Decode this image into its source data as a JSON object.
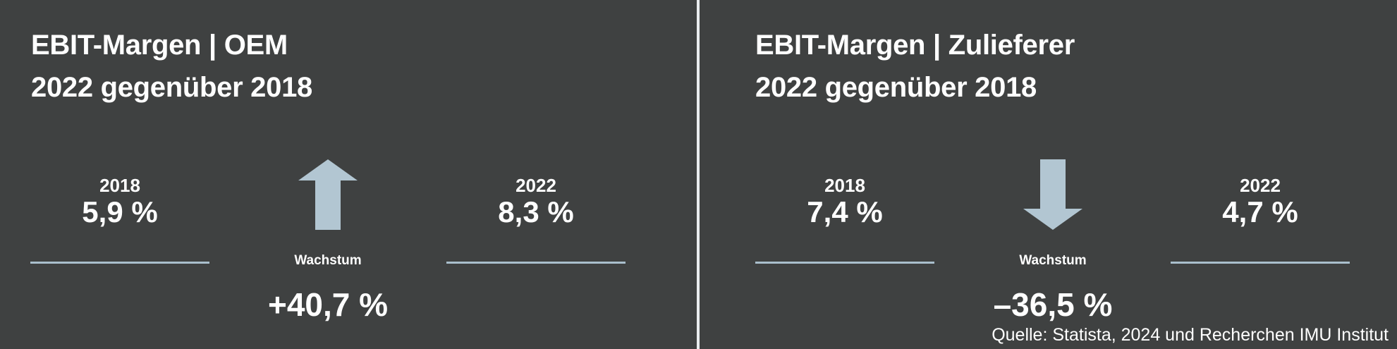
{
  "colors": {
    "background": "#3f4141",
    "text": "#ffffff",
    "accent": "#b2c6d2",
    "rule": "#a9bfcc",
    "divider": "#e9ecee"
  },
  "chart_data": [
    {
      "type": "table",
      "title": [
        "EBIT-Margen | OEM",
        "2022 gegenüber 2018"
      ],
      "values": [
        {
          "year": "2018",
          "label": "5,9 %",
          "value": 5.9
        },
        {
          "year": "2022",
          "label": "8,3 %",
          "value": 8.3
        }
      ],
      "growth": {
        "label": "Wachstum",
        "text": "+40,7 %",
        "value": 40.7,
        "direction": "up",
        "icon": "arrow-up-icon"
      }
    },
    {
      "type": "table",
      "title": [
        "EBIT-Margen | Zulieferer",
        "2022 gegenüber 2018"
      ],
      "values": [
        {
          "year": "2018",
          "label": "7,4 %",
          "value": 7.4
        },
        {
          "year": "2022",
          "label": "4,7 %",
          "value": 4.7
        }
      ],
      "growth": {
        "label": "Wachstum",
        "text": "–36,5 %",
        "value": -36.5,
        "direction": "down",
        "icon": "arrow-down-icon"
      }
    }
  ],
  "source": "Quelle: Statista, 2024 und Recherchen IMU Institut"
}
